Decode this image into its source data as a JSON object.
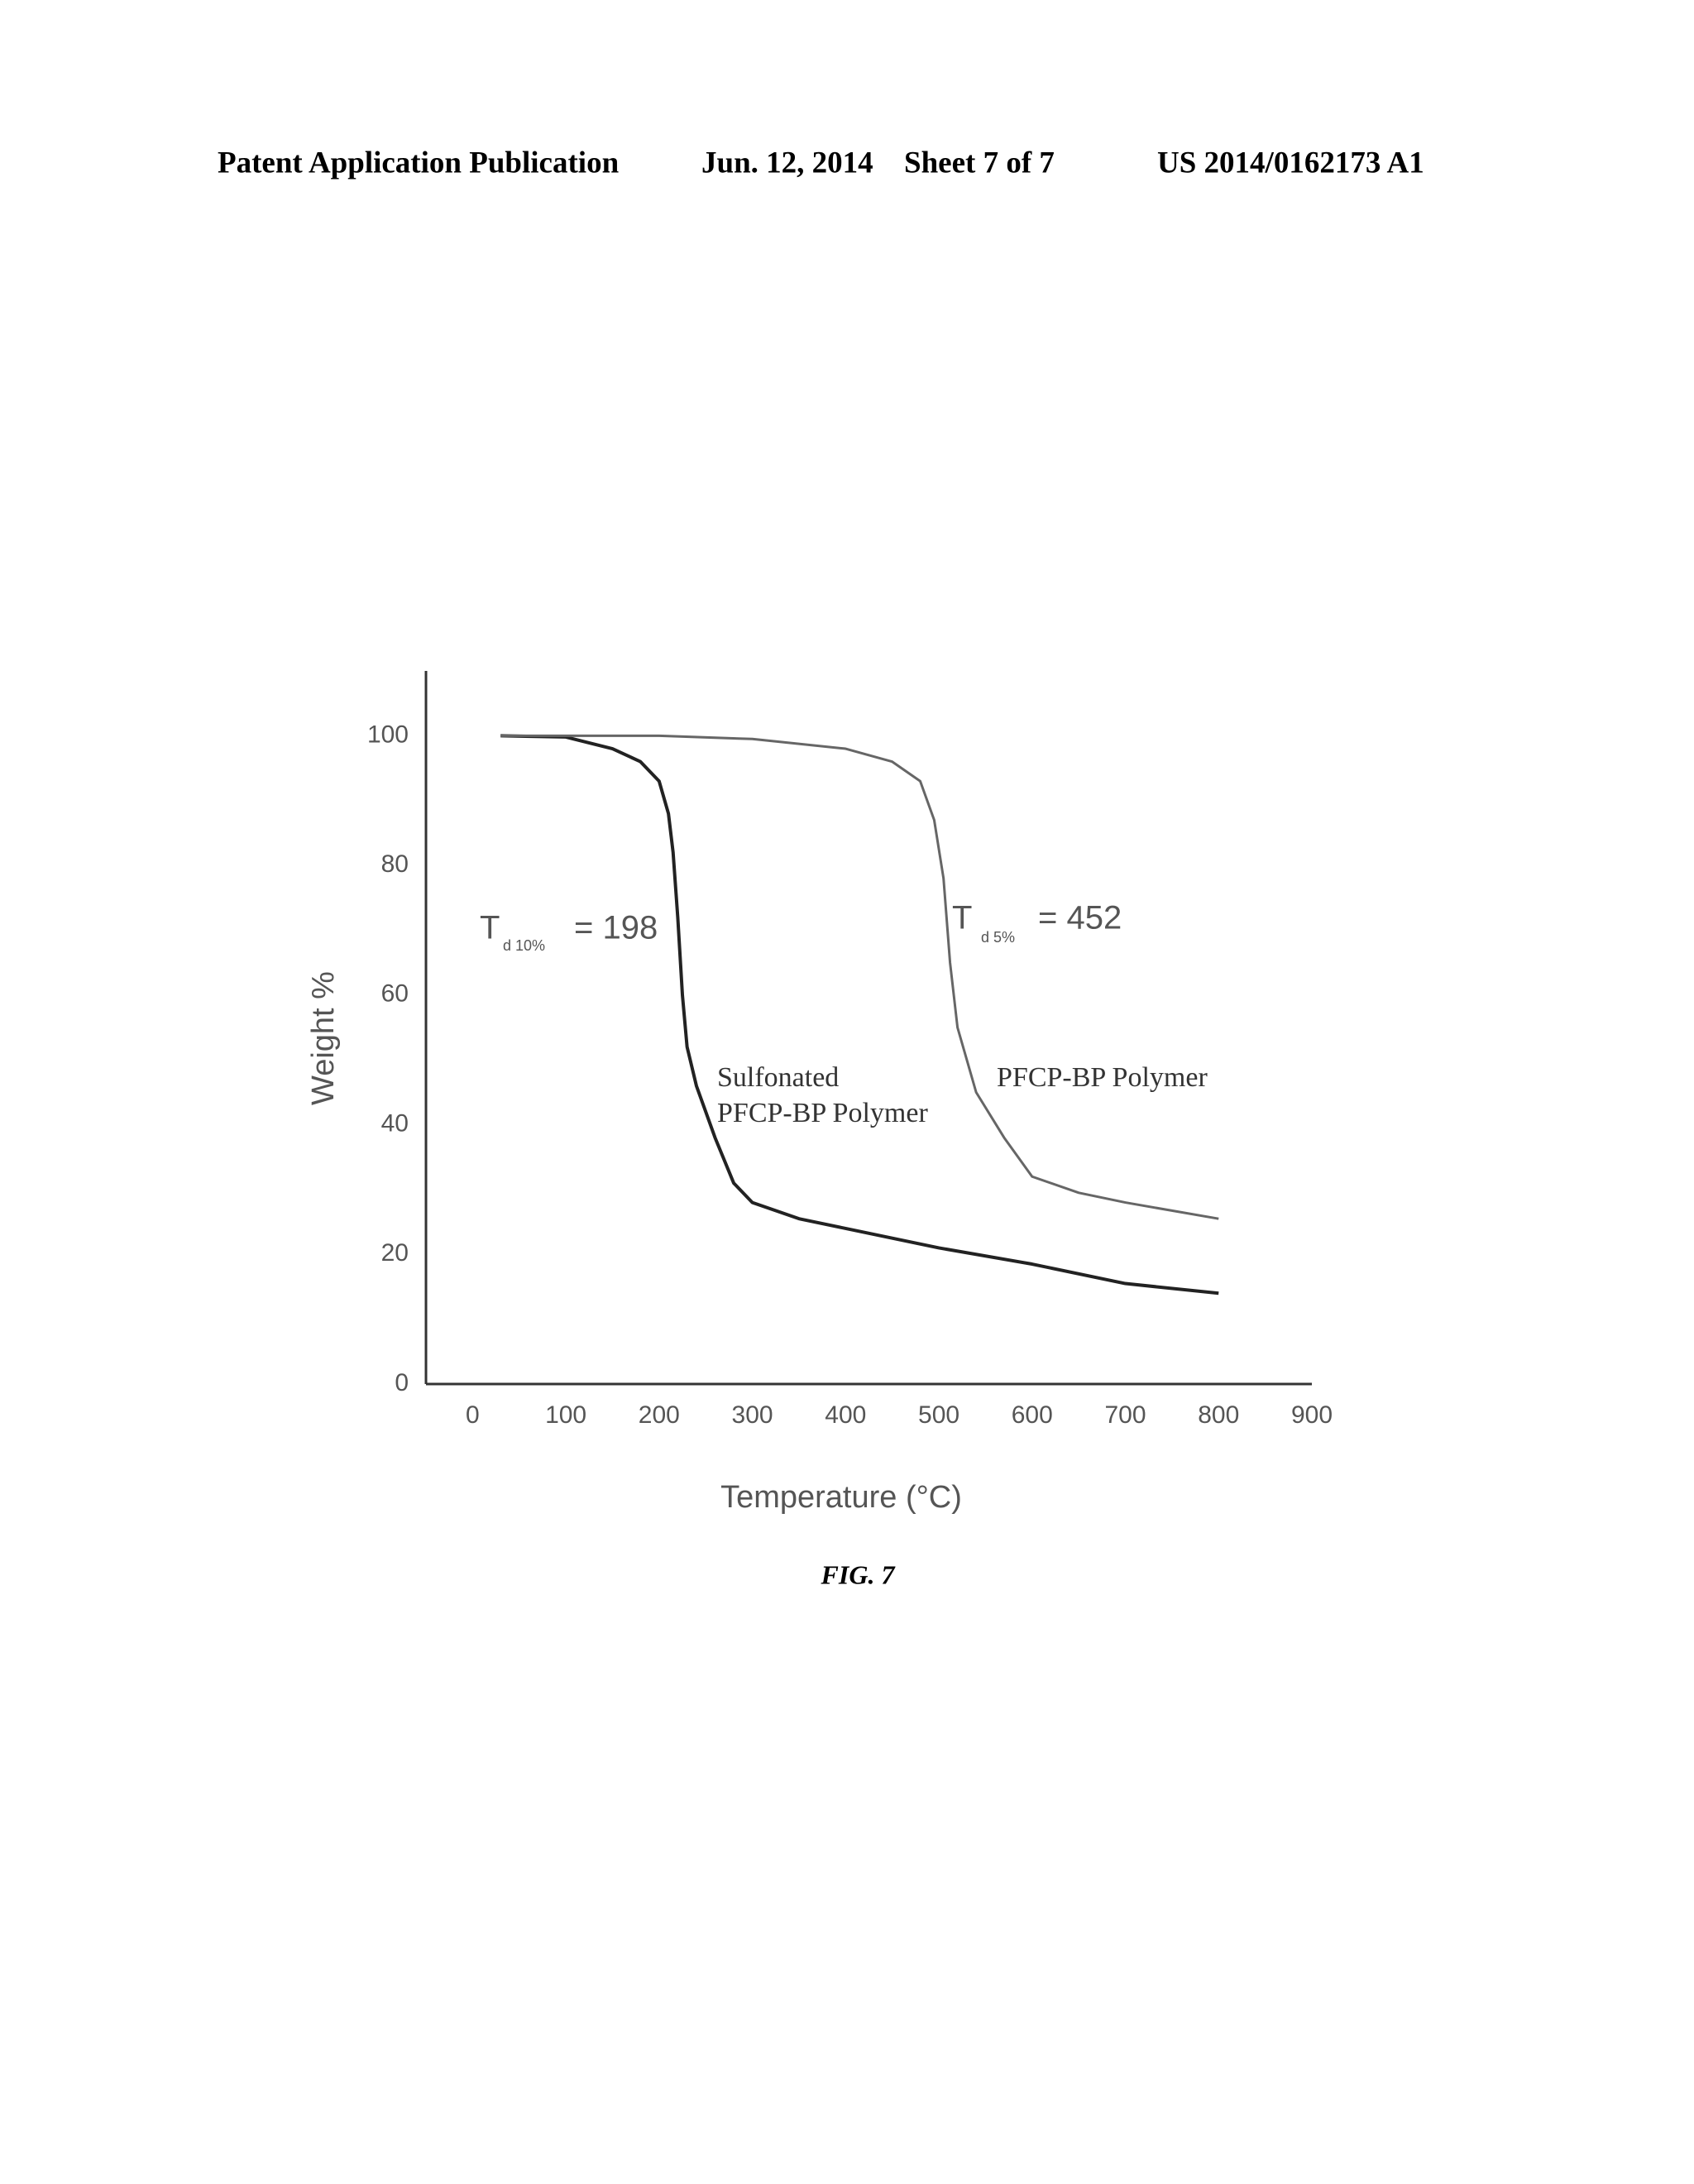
{
  "header": {
    "left": "Patent Application Publication",
    "date": "Jun. 12, 2014",
    "sheet": "Sheet 7 of 7",
    "number": "US 2014/0162173 A1"
  },
  "chart_data": {
    "type": "line",
    "xlabel": "Temperature (°C)",
    "ylabel": "Weight %",
    "xlim": [
      -50,
      900
    ],
    "ylim": [
      0,
      110
    ],
    "xticks": [
      0,
      100,
      200,
      300,
      400,
      500,
      600,
      700,
      800,
      900
    ],
    "yticks": [
      0,
      20,
      40,
      60,
      80,
      100
    ],
    "grid": false,
    "series": [
      {
        "color": "#222222",
        "x": [
          30,
          100,
          150,
          180,
          200,
          210,
          215,
          220,
          225,
          230,
          240,
          260,
          280,
          300,
          350,
          400,
          500,
          600,
          700,
          800
        ],
        "values": [
          100,
          99.8,
          98,
          96,
          93,
          88,
          82,
          72,
          60,
          52,
          46,
          38,
          31,
          28,
          25.5,
          24,
          21,
          18.5,
          15.5,
          14
        ]
      },
      {
        "color": "#666666",
        "x": [
          30,
          200,
          300,
          400,
          450,
          480,
          495,
          505,
          512,
          520,
          540,
          570,
          600,
          650,
          700,
          800
        ],
        "values": [
          100,
          100,
          99.5,
          98,
          96,
          93,
          87,
          78,
          65,
          55,
          45,
          38,
          32,
          29.5,
          28,
          25.5
        ]
      }
    ],
    "annotations": [
      {
        "symbol": "T",
        "subscript": "d 10%",
        "text": "= 198"
      },
      {
        "symbol": "T",
        "subscript": "d 5%",
        "text": "= 452"
      }
    ],
    "curve_labels": [
      "Sulfonated",
      "PFCP-BP Polymer",
      "PFCP-BP Polymer"
    ],
    "caption": "FIG. 7"
  }
}
